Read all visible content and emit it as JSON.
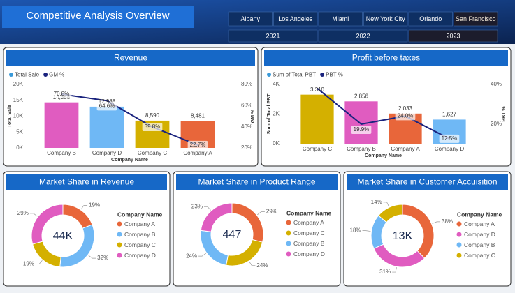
{
  "header": {
    "title": "Competitive Analysis Overview",
    "cities": [
      "Albany",
      "Los Angeles",
      "Miami",
      "New York City",
      "Orlando",
      "San Francisco"
    ],
    "selected_city": 5,
    "years": [
      "2021",
      "2022",
      "2023"
    ],
    "selected_year": 2
  },
  "chart_data": [
    {
      "type": "combo",
      "title": "Revenue",
      "x_label": "Company Name",
      "y_label": "Total Sale",
      "y2_label": "GM %",
      "categories": [
        "Company B",
        "Company D",
        "Company C",
        "Company A"
      ],
      "series": [
        {
          "name": "Total Sale",
          "type": "bar",
          "color": "#3a9ad9",
          "colors": [
            "#e05cc0",
            "#6fb8f5",
            "#d4b000",
            "#e8663a"
          ],
          "values": [
            14358,
            12988,
            8590,
            8481
          ],
          "value_labels": [
            "14,358",
            "12,988",
            "8,590",
            "8,481"
          ]
        },
        {
          "name": "GM %",
          "type": "line",
          "axis": "y2",
          "color": "#1a237e",
          "values": [
            70.8,
            64.6,
            39.8,
            22.7
          ],
          "value_labels": [
            "70.8%",
            "64.6%",
            "39.8%",
            "22.7%"
          ]
        }
      ],
      "ylim": [
        0,
        20000
      ],
      "yticks": [
        {
          "value": 0,
          "label": "0K"
        },
        {
          "value": 5000,
          "label": "5K"
        },
        {
          "value": 10000,
          "label": "10K"
        },
        {
          "value": 15000,
          "label": "15K"
        },
        {
          "value": 20000,
          "label": "20K"
        }
      ],
      "y2lim": [
        20,
        80
      ],
      "y2ticks": [
        {
          "value": 20,
          "label": "20%"
        },
        {
          "value": 40,
          "label": "40%"
        },
        {
          "value": 60,
          "label": "60%"
        },
        {
          "value": 80,
          "label": "80%"
        }
      ]
    },
    {
      "type": "combo",
      "title": "Profit before taxes",
      "x_label": "Company Name",
      "y_label": "Sum of Total PBT",
      "y2_label": "PBT %",
      "categories": [
        "Company C",
        "Company B",
        "Company A",
        "Company D"
      ],
      "series": [
        {
          "name": "Sum of Total PBT",
          "type": "bar",
          "color": "#3a9ad9",
          "colors": [
            "#d4b000",
            "#e05cc0",
            "#e8663a",
            "#6fb8f5"
          ],
          "values": [
            3310,
            2856,
            2033,
            1627
          ],
          "value_labels": [
            "3,310",
            "2,856",
            "2,033",
            "1,627"
          ]
        },
        {
          "name": "PBT %",
          "type": "line",
          "axis": "y2",
          "color": "#1a237e",
          "values": [
            38,
            19.9,
            24.0,
            12.5
          ],
          "value_labels": [
            null,
            "19.9%",
            "24.0%",
            "12.5%"
          ]
        }
      ],
      "ylim": [
        0,
        4000
      ],
      "yticks": [
        {
          "value": 0,
          "label": "0K"
        },
        {
          "value": 2000,
          "label": "2K"
        },
        {
          "value": 4000,
          "label": "4K"
        }
      ],
      "y2lim": [
        10,
        40
      ],
      "y2ticks": [
        {
          "value": 20,
          "label": "20%"
        },
        {
          "value": 40,
          "label": "40%"
        }
      ]
    },
    {
      "type": "donut",
      "title": "Market Share in Revenue",
      "center_label": "44K",
      "legend_title": "Company Name",
      "categories": [
        "Company A",
        "Company B",
        "Company C",
        "Company D"
      ],
      "colors": [
        "#e8663a",
        "#6fb8f5",
        "#d4b000",
        "#e05cc0"
      ],
      "values": [
        19,
        32,
        19,
        29
      ],
      "value_labels": [
        "19%",
        "32%",
        "19%",
        "29%"
      ]
    },
    {
      "type": "donut",
      "title": "Market Share in Product Range",
      "center_label": "447",
      "legend_title": "Company Name",
      "categories": [
        "Company A",
        "Company C",
        "Company B",
        "Company D"
      ],
      "colors": [
        "#e8663a",
        "#d4b000",
        "#6fb8f5",
        "#e05cc0"
      ],
      "values": [
        29,
        24,
        24,
        23
      ],
      "value_labels": [
        "29%",
        "24%",
        "24%",
        "23%"
      ]
    },
    {
      "type": "donut",
      "title": "Market Share in Customer Accuisition",
      "center_label": "13K",
      "legend_title": "Company Name",
      "categories": [
        "Company A",
        "Company D",
        "Company B",
        "Company C"
      ],
      "colors": [
        "#e8663a",
        "#e05cc0",
        "#6fb8f5",
        "#d4b000"
      ],
      "values": [
        38,
        31,
        18,
        14
      ],
      "value_labels": [
        "38%",
        "31%",
        "18%",
        "14%"
      ]
    }
  ]
}
